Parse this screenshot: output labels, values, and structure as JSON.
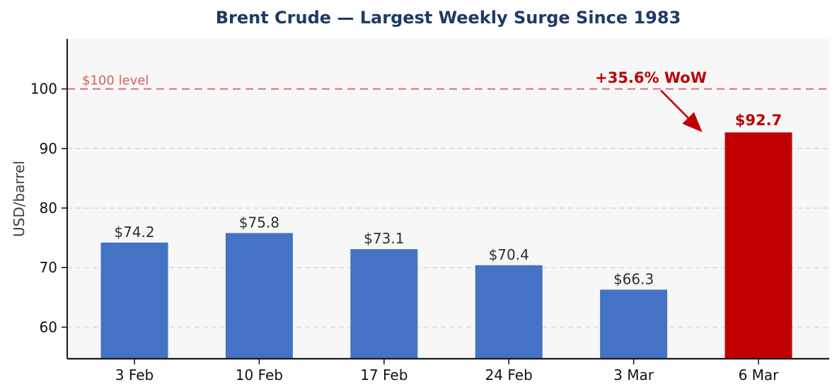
{
  "chart_data": {
    "type": "bar",
    "title": "Brent Crude — Largest Weekly Surge Since 1983",
    "xlabel": "",
    "ylabel": "USD/barrel",
    "categories": [
      "3 Feb",
      "10 Feb",
      "17 Feb",
      "24 Feb",
      "3 Mar",
      "6 Mar"
    ],
    "values": [
      74.2,
      75.8,
      73.1,
      70.4,
      66.3,
      92.7
    ],
    "bar_labels": [
      "$74.2",
      "$75.8",
      "$73.1",
      "$70.4",
      "$66.3",
      "$92.7"
    ],
    "bar_colors": [
      "#4472c4",
      "#4472c4",
      "#4472c4",
      "#4472c4",
      "#4472c4",
      "#c00000"
    ],
    "highlight_index": 5,
    "ylim": [
      54.7,
      108.4
    ],
    "yticks": [
      60,
      70,
      80,
      90,
      100
    ],
    "grid": true,
    "legend": null,
    "colors": {
      "bar": "#4472c4",
      "highlight": "#c00000",
      "title": "#1e3a66",
      "value_label": "#2e2e2e",
      "tick_label": "#111111",
      "grid": "#d9d9d9",
      "plot_bg": "#f7f7f8",
      "axis": "#1a1a1a"
    },
    "threshold_line": {
      "value": 100,
      "label": "$100 level",
      "color": "#e06565",
      "label_color": "#d95c5c",
      "style": "dashed"
    },
    "annotation": {
      "text": "+35.6% WoW",
      "color": "#c00000"
    }
  }
}
